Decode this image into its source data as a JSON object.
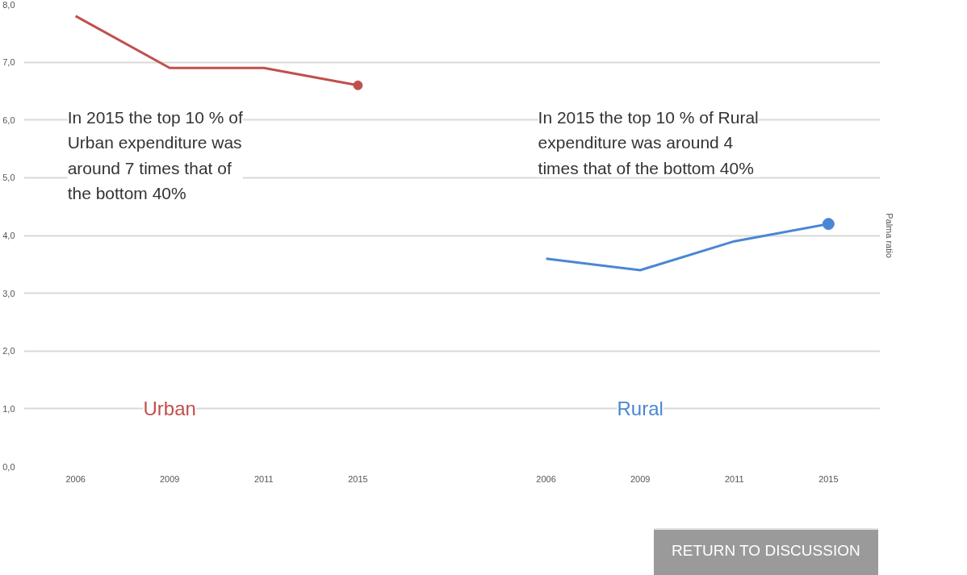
{
  "chart_data": {
    "type": "line",
    "ylabel": "Palma ratio",
    "categories": [
      "2006",
      "2009",
      "2011",
      "2015",
      null,
      "2006",
      "2009",
      "2011",
      "2015"
    ],
    "series": [
      {
        "name": "Urban",
        "color": "#c0504d",
        "values": [
          7.8,
          6.9,
          6.9,
          6.6,
          null,
          null,
          null,
          null,
          null
        ]
      },
      {
        "name": "Rural",
        "color": "#4a86d4",
        "values": [
          null,
          null,
          null,
          null,
          null,
          3.6,
          3.4,
          3.9,
          4.2
        ]
      }
    ],
    "ylim": [
      0,
      8
    ],
    "yticks": [
      {
        "value": 0,
        "label": "0,0"
      },
      {
        "value": 1,
        "label": "1,0"
      },
      {
        "value": 2,
        "label": "2,0"
      },
      {
        "value": 3,
        "label": "3,0"
      },
      {
        "value": 4,
        "label": "4,0"
      },
      {
        "value": 5,
        "label": "5,0"
      },
      {
        "value": 6,
        "label": "6,0"
      },
      {
        "value": 7,
        "label": "7,0"
      },
      {
        "value": 8,
        "label": "8,0"
      }
    ],
    "grid": "y",
    "annotations": [
      "In 2015 the top 10 % of Urban expenditure was around 7 times that of the bottom 40%",
      "In 2015 the top 10 % of Rural expenditure was around 4 times that of the bottom 40%",
      "RETURN TO DISCUSSION"
    ]
  }
}
